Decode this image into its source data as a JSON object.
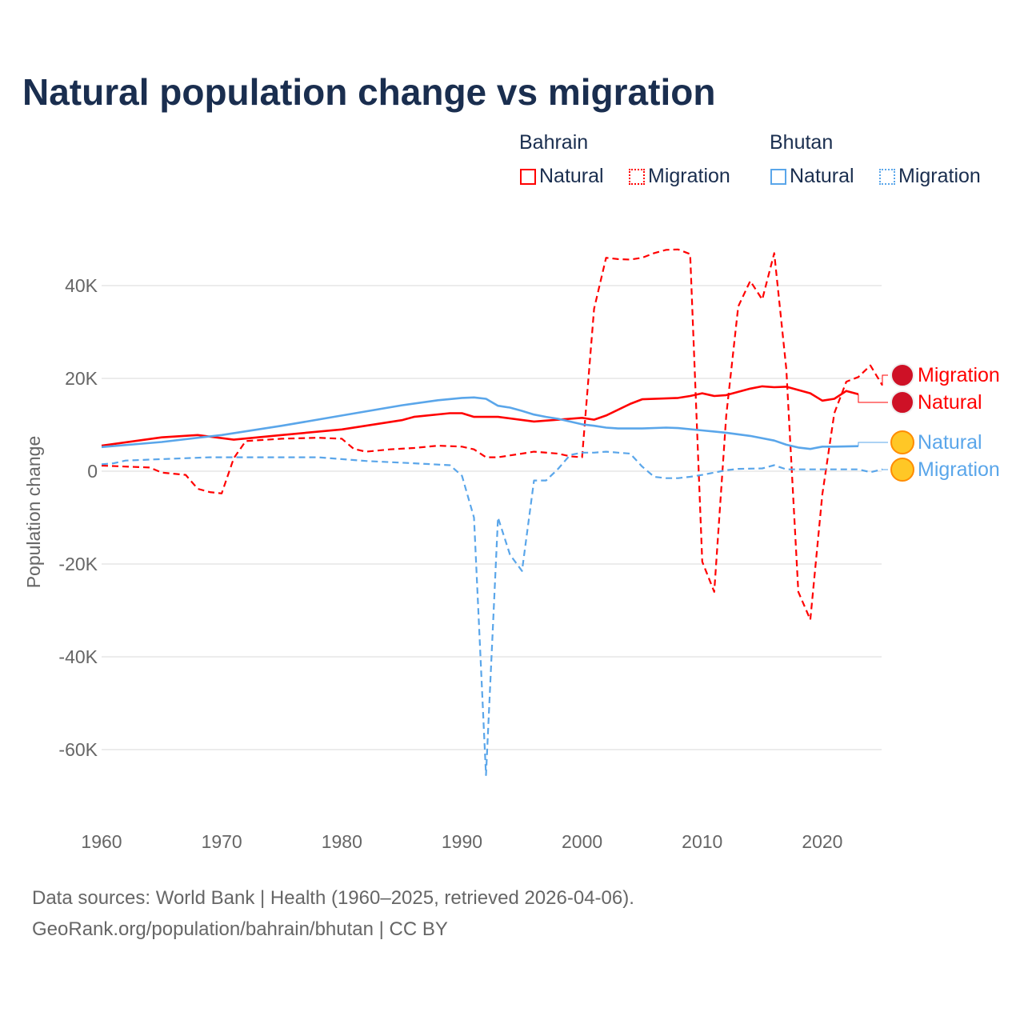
{
  "chart_data": {
    "type": "line",
    "title": "Natural population change vs migration",
    "xlabel": "",
    "ylabel": "Population change",
    "xlim": [
      1960,
      2025
    ],
    "ylim": [
      -65000,
      48000
    ],
    "x_ticks": [
      "1960",
      "1970",
      "1980",
      "1990",
      "2000",
      "2010",
      "2020"
    ],
    "y_ticks": [
      {
        "v": 40000,
        "l": "40K"
      },
      {
        "v": 20000,
        "l": "20K"
      },
      {
        "v": 0,
        "l": "0"
      },
      {
        "v": -20000,
        "l": "-20K"
      },
      {
        "v": -40000,
        "l": "-40K"
      },
      {
        "v": -60000,
        "l": "-60K"
      }
    ],
    "legend": {
      "groups": [
        {
          "name": "Bahrain",
          "items": [
            "Natural",
            "Migration"
          ]
        },
        {
          "name": "Bhutan",
          "items": [
            "Natural",
            "Migration"
          ]
        }
      ],
      "placement": "top-right"
    },
    "series": [
      {
        "name": "Bahrain Natural",
        "country": "Bahrain",
        "kind": "Natural",
        "color": "#ff0000",
        "dash": false,
        "end_label": "Natural",
        "points": [
          [
            1960,
            5500
          ],
          [
            1965,
            7300
          ],
          [
            1968,
            7800
          ],
          [
            1971,
            6800
          ],
          [
            1975,
            7800
          ],
          [
            1980,
            9000
          ],
          [
            1985,
            11000
          ],
          [
            1986,
            11700
          ],
          [
            1989,
            12500
          ],
          [
            1990,
            12500
          ],
          [
            1991,
            11700
          ],
          [
            1993,
            11700
          ],
          [
            1996,
            10700
          ],
          [
            2000,
            11500
          ],
          [
            2001,
            11100
          ],
          [
            2002,
            12000
          ],
          [
            2004,
            14500
          ],
          [
            2005,
            15500
          ],
          [
            2008,
            15800
          ],
          [
            2009,
            16200
          ],
          [
            2010,
            16800
          ],
          [
            2011,
            16200
          ],
          [
            2012,
            16400
          ],
          [
            2014,
            17800
          ],
          [
            2015,
            18300
          ],
          [
            2016,
            18100
          ],
          [
            2017,
            18200
          ],
          [
            2019,
            16800
          ],
          [
            2020,
            15200
          ],
          [
            2021,
            15600
          ],
          [
            2022,
            17300
          ],
          [
            2023,
            16600
          ]
        ]
      },
      {
        "name": "Bahrain Migration",
        "country": "Bahrain",
        "kind": "Migration",
        "color": "#ff0000",
        "dash": true,
        "end_label": "Migration",
        "points": [
          [
            1960,
            1200
          ],
          [
            1964,
            800
          ],
          [
            1965,
            -300
          ],
          [
            1967,
            -800
          ],
          [
            1968,
            -3800
          ],
          [
            1969,
            -4500
          ],
          [
            1970,
            -4800
          ],
          [
            1971,
            2800
          ],
          [
            1972,
            6500
          ],
          [
            1975,
            7000
          ],
          [
            1978,
            7200
          ],
          [
            1980,
            7000
          ],
          [
            1981,
            4800
          ],
          [
            1982,
            4200
          ],
          [
            1984,
            4700
          ],
          [
            1986,
            5000
          ],
          [
            1988,
            5500
          ],
          [
            1990,
            5300
          ],
          [
            1991,
            4700
          ],
          [
            1992,
            3000
          ],
          [
            1993,
            3000
          ],
          [
            1995,
            3800
          ],
          [
            1996,
            4200
          ],
          [
            1998,
            3800
          ],
          [
            1999,
            3200
          ],
          [
            2000,
            3000
          ],
          [
            2001,
            35000
          ],
          [
            2002,
            46000
          ],
          [
            2003,
            45700
          ],
          [
            2004,
            45600
          ],
          [
            2005,
            46000
          ],
          [
            2006,
            47000
          ],
          [
            2007,
            47700
          ],
          [
            2008,
            47800
          ],
          [
            2009,
            46800
          ],
          [
            2010,
            -19500
          ],
          [
            2011,
            -26000
          ],
          [
            2012,
            12000
          ],
          [
            2013,
            35500
          ],
          [
            2014,
            41000
          ],
          [
            2015,
            37000
          ],
          [
            2016,
            47000
          ],
          [
            2017,
            22000
          ],
          [
            2018,
            -26000
          ],
          [
            2019,
            -32000
          ],
          [
            2020,
            -5000
          ],
          [
            2021,
            12500
          ],
          [
            2022,
            19300
          ],
          [
            2023,
            20300
          ],
          [
            2024,
            22800
          ],
          [
            2025,
            18500
          ]
        ]
      },
      {
        "name": "Bhutan Natural",
        "country": "Bhutan",
        "kind": "Natural",
        "color": "#5aa6ea",
        "dash": false,
        "end_label": "Natural",
        "points": [
          [
            1960,
            5200
          ],
          [
            1965,
            6300
          ],
          [
            1970,
            7800
          ],
          [
            1975,
            9800
          ],
          [
            1980,
            12000
          ],
          [
            1985,
            14200
          ],
          [
            1988,
            15300
          ],
          [
            1990,
            15800
          ],
          [
            1991,
            15900
          ],
          [
            1992,
            15600
          ],
          [
            1993,
            14100
          ],
          [
            1994,
            13700
          ],
          [
            1995,
            13000
          ],
          [
            1996,
            12200
          ],
          [
            1997,
            11700
          ],
          [
            1998,
            11300
          ],
          [
            2000,
            10100
          ],
          [
            2001,
            9800
          ],
          [
            2002,
            9400
          ],
          [
            2003,
            9200
          ],
          [
            2005,
            9200
          ],
          [
            2007,
            9400
          ],
          [
            2008,
            9300
          ],
          [
            2010,
            8800
          ],
          [
            2012,
            8300
          ],
          [
            2014,
            7600
          ],
          [
            2016,
            6600
          ],
          [
            2017,
            5700
          ],
          [
            2018,
            5100
          ],
          [
            2019,
            4800
          ],
          [
            2020,
            5300
          ],
          [
            2021,
            5300
          ],
          [
            2023,
            5400
          ]
        ]
      },
      {
        "name": "Bhutan Migration",
        "country": "Bhutan",
        "kind": "Migration",
        "color": "#5aa6ea",
        "dash": true,
        "end_label": "Migration",
        "points": [
          [
            1960,
            1500
          ],
          [
            1961,
            1700
          ],
          [
            1962,
            2300
          ],
          [
            1965,
            2600
          ],
          [
            1969,
            3000
          ],
          [
            1978,
            3000
          ],
          [
            1982,
            2200
          ],
          [
            1986,
            1700
          ],
          [
            1989,
            1300
          ],
          [
            1990,
            -1000
          ],
          [
            1991,
            -10000
          ],
          [
            1992,
            -65500
          ],
          [
            1993,
            -10000
          ],
          [
            1994,
            -18000
          ],
          [
            1995,
            -21500
          ],
          [
            1996,
            -2000
          ],
          [
            1997,
            -2000
          ],
          [
            1998,
            500
          ],
          [
            1999,
            3500
          ],
          [
            2000,
            4000
          ],
          [
            2001,
            4000
          ],
          [
            2002,
            4200
          ],
          [
            2003,
            4000
          ],
          [
            2004,
            3800
          ],
          [
            2005,
            1000
          ],
          [
            2006,
            -1200
          ],
          [
            2007,
            -1500
          ],
          [
            2008,
            -1500
          ],
          [
            2009,
            -1200
          ],
          [
            2010,
            -800
          ],
          [
            2011,
            -300
          ],
          [
            2012,
            200
          ],
          [
            2013,
            500
          ],
          [
            2015,
            600
          ],
          [
            2016,
            1300
          ],
          [
            2017,
            400
          ],
          [
            2023,
            400
          ],
          [
            2024,
            -200
          ],
          [
            2025,
            400
          ]
        ]
      }
    ]
  },
  "footer": {
    "line1": "Data sources: World Bank | Health (1960–2025, retrieved 2026-04-06).",
    "line2": "GeoRank.org/population/bahrain/bhutan | CC BY"
  }
}
